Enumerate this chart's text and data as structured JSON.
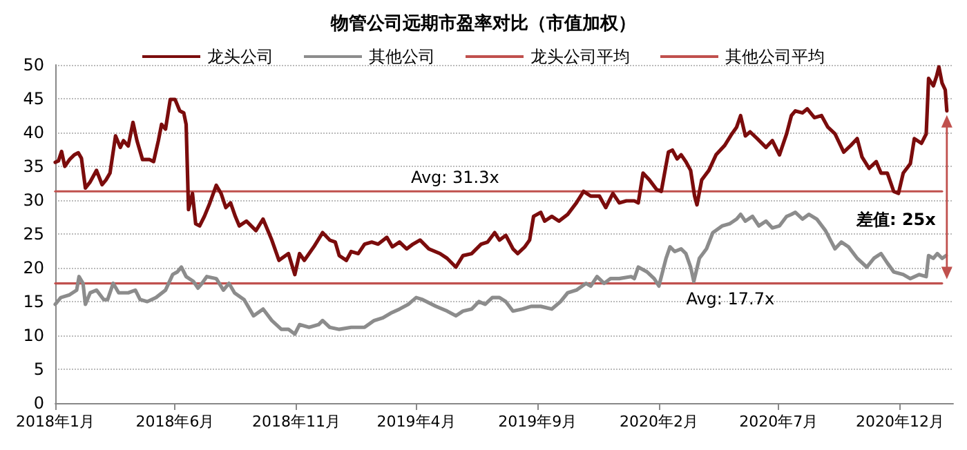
{
  "chart_data": {
    "type": "line",
    "title": "物管公司远期市盈率对比（市值加权）",
    "xlim": [
      "2018-01-01",
      "2021-02-06"
    ],
    "xticks": [
      {
        "value": "2018-01",
        "label": "2018年1月"
      },
      {
        "value": "2018-06",
        "label": "2018年6月"
      },
      {
        "value": "2018-11",
        "label": "2018年11月"
      },
      {
        "value": "2019-04",
        "label": "2019年4月"
      },
      {
        "value": "2019-09",
        "label": "2019年9月"
      },
      {
        "value": "2020-02",
        "label": "2020年2月"
      },
      {
        "value": "2020-07",
        "label": "2020年7月"
      },
      {
        "value": "2020-12",
        "label": "2020年12月"
      }
    ],
    "ylim": [
      0,
      50
    ],
    "yticks": [
      0,
      5,
      10,
      15,
      20,
      25,
      30,
      35,
      40,
      45,
      50
    ],
    "grid": "y",
    "legend": "top",
    "marker": "none",
    "line_style": "solid",
    "series": [
      {
        "name": "龙头公司",
        "color": "#7b0c0c",
        "x": [
          "2018-01-01",
          "2018-01-05",
          "2018-01-09",
          "2018-01-13",
          "2018-01-19",
          "2018-01-25",
          "2018-01-30",
          "2018-02-03",
          "2018-02-08",
          "2018-02-14",
          "2018-02-22",
          "2018-03-01",
          "2018-03-06",
          "2018-03-11",
          "2018-03-18",
          "2018-03-24",
          "2018-03-28",
          "2018-04-03",
          "2018-04-09",
          "2018-04-14",
          "2018-04-21",
          "2018-04-30",
          "2018-05-05",
          "2018-05-11",
          "2018-05-15",
          "2018-05-20",
          "2018-05-26",
          "2018-06-01",
          "2018-06-07",
          "2018-06-12",
          "2018-06-15",
          "2018-06-18",
          "2018-06-23",
          "2018-06-27",
          "2018-07-02",
          "2018-07-08",
          "2018-07-14",
          "2018-07-23",
          "2018-07-29",
          "2018-08-04",
          "2018-08-10",
          "2018-08-16",
          "2018-08-21",
          "2018-08-30",
          "2018-09-11",
          "2018-09-20",
          "2018-10-01",
          "2018-10-10",
          "2018-10-22",
          "2018-10-30",
          "2018-11-05",
          "2018-11-11",
          "2018-11-23",
          "2018-12-04",
          "2018-12-13",
          "2018-12-20",
          "2018-12-25",
          "2019-01-03",
          "2019-01-09",
          "2019-01-18",
          "2019-01-26",
          "2019-02-04",
          "2019-02-12",
          "2019-02-23",
          "2019-03-02",
          "2019-03-11",
          "2019-03-20",
          "2019-03-28",
          "2019-04-06",
          "2019-04-17",
          "2019-05-01",
          "2019-05-10",
          "2019-05-21",
          "2019-05-30",
          "2019-06-10",
          "2019-06-22",
          "2019-06-30",
          "2019-07-09",
          "2019-07-15",
          "2019-07-23",
          "2019-08-01",
          "2019-08-07",
          "2019-08-16",
          "2019-08-22",
          "2019-08-27",
          "2019-09-05",
          "2019-09-10",
          "2019-09-19",
          "2019-09-28",
          "2019-10-09",
          "2019-10-20",
          "2019-10-29",
          "2019-11-07",
          "2019-11-18",
          "2019-11-26",
          "2019-12-05",
          "2019-12-13",
          "2019-12-22",
          "2020-01-01",
          "2020-01-06",
          "2020-01-12",
          "2020-01-20",
          "2020-01-29",
          "2020-02-04",
          "2020-02-13",
          "2020-02-18",
          "2020-02-24",
          "2020-02-29",
          "2020-03-06",
          "2020-03-12",
          "2020-03-17",
          "2020-03-20",
          "2020-03-26",
          "2020-04-04",
          "2020-04-13",
          "2020-04-24",
          "2020-05-03",
          "2020-05-09",
          "2020-05-14",
          "2020-05-20",
          "2020-05-26",
          "2020-06-04",
          "2020-06-15",
          "2020-06-23",
          "2020-07-02",
          "2020-07-11",
          "2020-07-17",
          "2020-07-22",
          "2020-07-31",
          "2020-08-06",
          "2020-08-15",
          "2020-08-24",
          "2020-09-01",
          "2020-09-10",
          "2020-09-21",
          "2020-09-30",
          "2020-10-08",
          "2020-10-14",
          "2020-10-23",
          "2020-11-01",
          "2020-11-07",
          "2020-11-15",
          "2020-11-23",
          "2020-11-29",
          "2020-12-05",
          "2020-12-14",
          "2020-12-19",
          "2020-12-28",
          "2021-01-03",
          "2021-01-06",
          "2021-01-12",
          "2021-01-16",
          "2021-01-19",
          "2021-01-23",
          "2021-01-27",
          "2021-01-29"
        ],
        "values": [
          35.6,
          35.8,
          37.2,
          35.0,
          36.0,
          36.7,
          37.0,
          36.2,
          31.8,
          32.7,
          34.4,
          32.3,
          33.0,
          34.0,
          39.5,
          37.8,
          38.8,
          38.0,
          41.5,
          38.8,
          36.0,
          36.0,
          35.7,
          38.8,
          41.2,
          40.5,
          44.9,
          44.9,
          43.2,
          42.9,
          41.2,
          28.6,
          31.0,
          26.5,
          26.2,
          27.6,
          29.3,
          32.2,
          31.0,
          28.9,
          29.6,
          27.6,
          26.2,
          26.9,
          25.5,
          27.2,
          24.1,
          21.1,
          22.1,
          19.0,
          22.1,
          21.1,
          23.1,
          25.2,
          24.1,
          23.8,
          21.8,
          21.1,
          22.4,
          22.1,
          23.5,
          23.8,
          23.5,
          24.5,
          23.1,
          23.8,
          22.8,
          23.5,
          24.1,
          22.8,
          22.1,
          21.4,
          20.1,
          21.8,
          22.1,
          23.5,
          23.8,
          25.2,
          24.1,
          24.8,
          22.8,
          22.1,
          23.1,
          24.1,
          27.6,
          28.2,
          26.9,
          27.6,
          26.9,
          27.9,
          29.6,
          31.3,
          30.6,
          30.6,
          28.9,
          31.0,
          29.6,
          29.9,
          29.9,
          29.6,
          34.0,
          33.0,
          31.6,
          31.3,
          37.1,
          37.4,
          36.1,
          36.7,
          35.7,
          34.4,
          30.6,
          29.3,
          33.0,
          34.4,
          36.7,
          38.1,
          39.8,
          40.8,
          42.5,
          39.5,
          40.1,
          39.1,
          37.8,
          38.8,
          36.7,
          39.8,
          42.5,
          43.2,
          42.9,
          43.5,
          42.2,
          42.5,
          40.8,
          39.8,
          37.1,
          38.1,
          39.1,
          36.4,
          34.7,
          35.7,
          34.0,
          34.0,
          31.3,
          31.0,
          34.0,
          35.4,
          39.1,
          38.4,
          39.8,
          48.0,
          46.9,
          48.3,
          49.7,
          47.3,
          46.3,
          43.2
        ]
      },
      {
        "name": "其他公司",
        "color": "#8c8c8c",
        "x": [
          "2018-01-01",
          "2018-01-08",
          "2018-01-19",
          "2018-01-28",
          "2018-01-31",
          "2018-02-05",
          "2018-02-08",
          "2018-02-14",
          "2018-02-22",
          "2018-03-03",
          "2018-03-08",
          "2018-03-15",
          "2018-03-22",
          "2018-04-03",
          "2018-04-12",
          "2018-04-18",
          "2018-04-27",
          "2018-05-08",
          "2018-05-20",
          "2018-05-29",
          "2018-06-04",
          "2018-06-09",
          "2018-06-15",
          "2018-06-24",
          "2018-06-30",
          "2018-07-05",
          "2018-07-11",
          "2018-07-23",
          "2018-08-01",
          "2018-08-08",
          "2018-08-15",
          "2018-08-27",
          "2018-09-08",
          "2018-09-20",
          "2018-10-01",
          "2018-10-13",
          "2018-10-22",
          "2018-10-30",
          "2018-11-05",
          "2018-11-17",
          "2018-11-29",
          "2018-12-04",
          "2018-12-13",
          "2018-12-25",
          "2019-01-09",
          "2019-01-26",
          "2019-02-07",
          "2019-02-18",
          "2019-02-28",
          "2019-03-11",
          "2019-03-22",
          "2019-04-01",
          "2019-04-09",
          "2019-04-26",
          "2019-05-10",
          "2019-05-21",
          "2019-05-30",
          "2019-06-10",
          "2019-06-19",
          "2019-06-27",
          "2019-07-06",
          "2019-07-15",
          "2019-07-23",
          "2019-08-01",
          "2019-08-13",
          "2019-08-24",
          "2019-09-05",
          "2019-09-19",
          "2019-09-30",
          "2019-10-09",
          "2019-10-20",
          "2019-11-01",
          "2019-11-07",
          "2019-11-15",
          "2019-11-24",
          "2019-12-02",
          "2019-12-13",
          "2019-12-28",
          "2020-01-01",
          "2020-01-06",
          "2020-01-17",
          "2020-01-26",
          "2020-02-01",
          "2020-02-10",
          "2020-02-15",
          "2020-02-21",
          "2020-02-29",
          "2020-03-06",
          "2020-03-12",
          "2020-03-16",
          "2020-03-23",
          "2020-04-01",
          "2020-04-09",
          "2020-04-21",
          "2020-04-30",
          "2020-05-09",
          "2020-05-14",
          "2020-05-20",
          "2020-05-29",
          "2020-06-06",
          "2020-06-15",
          "2020-06-23",
          "2020-07-02",
          "2020-07-11",
          "2020-07-17",
          "2020-07-22",
          "2020-07-31",
          "2020-08-08",
          "2020-08-18",
          "2020-08-29",
          "2020-09-10",
          "2020-09-18",
          "2020-09-27",
          "2020-10-08",
          "2020-10-20",
          "2020-10-29",
          "2020-11-07",
          "2020-11-15",
          "2020-11-23",
          "2020-12-05",
          "2020-12-14",
          "2020-12-25",
          "2021-01-03",
          "2021-01-06",
          "2021-01-12",
          "2021-01-17",
          "2021-01-23",
          "2021-01-28"
        ],
        "values": [
          14.6,
          15.6,
          16.0,
          16.7,
          18.7,
          17.7,
          14.6,
          16.3,
          16.7,
          15.3,
          15.3,
          17.7,
          16.3,
          16.3,
          16.7,
          15.3,
          15.0,
          15.6,
          16.7,
          19.0,
          19.4,
          20.1,
          18.7,
          18.0,
          17.0,
          17.7,
          18.7,
          18.4,
          16.7,
          17.7,
          16.3,
          15.3,
          12.9,
          13.9,
          12.2,
          10.9,
          10.9,
          10.2,
          11.6,
          11.2,
          11.6,
          12.2,
          11.2,
          10.9,
          11.2,
          11.2,
          12.2,
          12.6,
          13.3,
          13.9,
          14.6,
          15.6,
          15.3,
          14.3,
          13.6,
          12.9,
          13.6,
          13.9,
          15.0,
          14.6,
          15.6,
          15.6,
          15.0,
          13.6,
          13.9,
          14.3,
          14.3,
          13.9,
          15.0,
          16.3,
          16.7,
          17.7,
          17.3,
          18.7,
          17.7,
          18.4,
          18.4,
          18.7,
          18.4,
          20.1,
          19.4,
          18.4,
          17.3,
          21.4,
          23.1,
          22.4,
          22.8,
          22.1,
          20.1,
          18.0,
          21.4,
          22.8,
          25.2,
          26.2,
          26.5,
          27.2,
          27.9,
          26.9,
          27.6,
          26.2,
          26.9,
          25.9,
          26.2,
          27.6,
          27.9,
          28.2,
          27.2,
          27.9,
          27.2,
          25.5,
          22.8,
          23.8,
          23.1,
          21.4,
          20.1,
          21.4,
          22.1,
          20.7,
          19.4,
          19.0,
          18.4,
          19.0,
          18.7,
          21.8,
          21.4,
          22.1,
          21.4,
          21.8
        ]
      },
      {
        "name": "龙头公司平均",
        "color": "#c0504d",
        "x": [
          "2018-01-01",
          "2021-01-23"
        ],
        "values": [
          31.3,
          31.3
        ]
      },
      {
        "name": "其他公司平均",
        "color": "#c0504d",
        "x": [
          "2018-01-01",
          "2021-01-23"
        ],
        "values": [
          17.7,
          17.7
        ]
      }
    ],
    "annotations": [
      {
        "text": "Avg: 31.3x",
        "x": "2019-05-20",
        "y": 31.3
      },
      {
        "text": "Avg: 17.7x",
        "x": "2020-05-01",
        "y": 17.7
      },
      "差值: 25x"
    ]
  }
}
